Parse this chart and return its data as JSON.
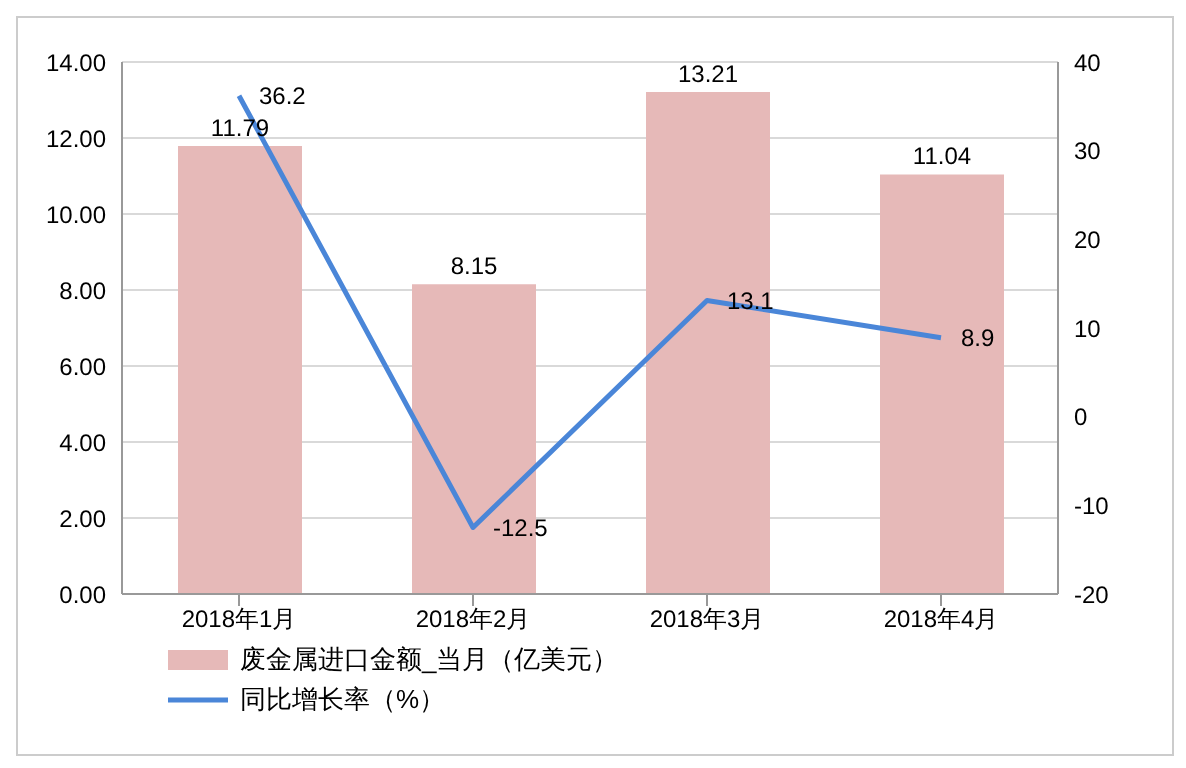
{
  "chart_data": {
    "type": "bar",
    "categories": [
      "2018年1月",
      "2018年2月",
      "2018年3月",
      "2018年4月"
    ],
    "series": [
      {
        "name": "废金属进口金额_当月（亿美元）",
        "color": "#e6b9b8",
        "values": [
          11.79,
          8.15,
          13.21,
          11.04
        ]
      },
      {
        "name": "同比增长率（%）",
        "type": "line",
        "axis": "y2",
        "color": "#4a86d8",
        "values": [
          36.2,
          -12.5,
          13.1,
          8.9
        ]
      }
    ],
    "ylim": [
      0,
      14
    ],
    "yticks": [
      {
        "value": 0,
        "label": "0.00"
      },
      {
        "value": 2,
        "label": "2.00"
      },
      {
        "value": 4,
        "label": "4.00"
      },
      {
        "value": 6,
        "label": "6.00"
      },
      {
        "value": 8,
        "label": "8.00"
      },
      {
        "value": 10,
        "label": "10.00"
      },
      {
        "value": 12,
        "label": "12.00"
      },
      {
        "value": 14,
        "label": "14.00"
      }
    ],
    "y2lim": [
      -20,
      40
    ],
    "y2ticks": [
      -20,
      -10,
      0,
      10,
      20,
      30,
      40
    ],
    "grid": "y",
    "legend": "bottom left",
    "marker": "none",
    "line_style": "solid",
    "data_labels": true
  }
}
